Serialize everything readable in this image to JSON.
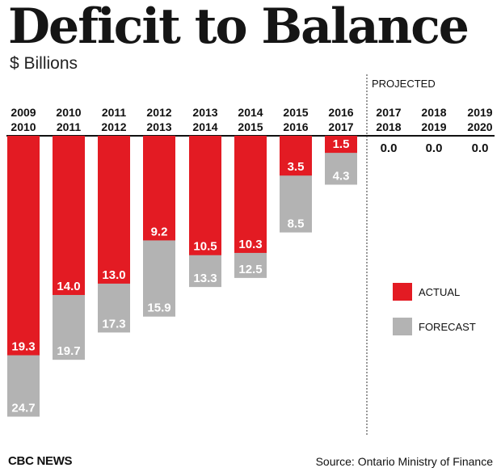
{
  "title": "Deficit to Balance",
  "subtitle": "$ Billions",
  "footer": {
    "source_left": "CBC NEWS",
    "source_right": "Source: Ontario Ministry of Finance"
  },
  "colors": {
    "actual": "#e31b23",
    "forecast": "#b3b3b3"
  },
  "chart_data": {
    "type": "bar",
    "title": "Deficit to Balance",
    "ylabel": "$ Billions",
    "xlabel": "",
    "ylim": [
      0,
      25
    ],
    "y_direction": "downward",
    "grid": false,
    "legend": {
      "position": "right",
      "entries": [
        "ACTUAL",
        "FORECAST"
      ]
    },
    "projected_label": "PROJECTED",
    "categories": [
      [
        "2009",
        "2010"
      ],
      [
        "2010",
        "2011"
      ],
      [
        "2011",
        "2012"
      ],
      [
        "2012",
        "2013"
      ],
      [
        "2013",
        "2014"
      ],
      [
        "2014",
        "2015"
      ],
      [
        "2015",
        "2016"
      ],
      [
        "2016",
        "2017"
      ],
      [
        "2017",
        "2018"
      ],
      [
        "2018",
        "2019"
      ],
      [
        "2019",
        "2020"
      ]
    ],
    "series": [
      {
        "name": "ACTUAL",
        "values": [
          19.3,
          14.0,
          13.0,
          9.2,
          10.5,
          10.3,
          3.5,
          1.5,
          null,
          null,
          null
        ]
      },
      {
        "name": "FORECAST",
        "values": [
          24.7,
          19.7,
          17.3,
          15.9,
          13.3,
          12.5,
          8.5,
          4.3,
          null,
          null,
          null
        ]
      }
    ],
    "projected": {
      "start_index": 8,
      "values": [
        0.0,
        0.0,
        0.0
      ]
    }
  }
}
